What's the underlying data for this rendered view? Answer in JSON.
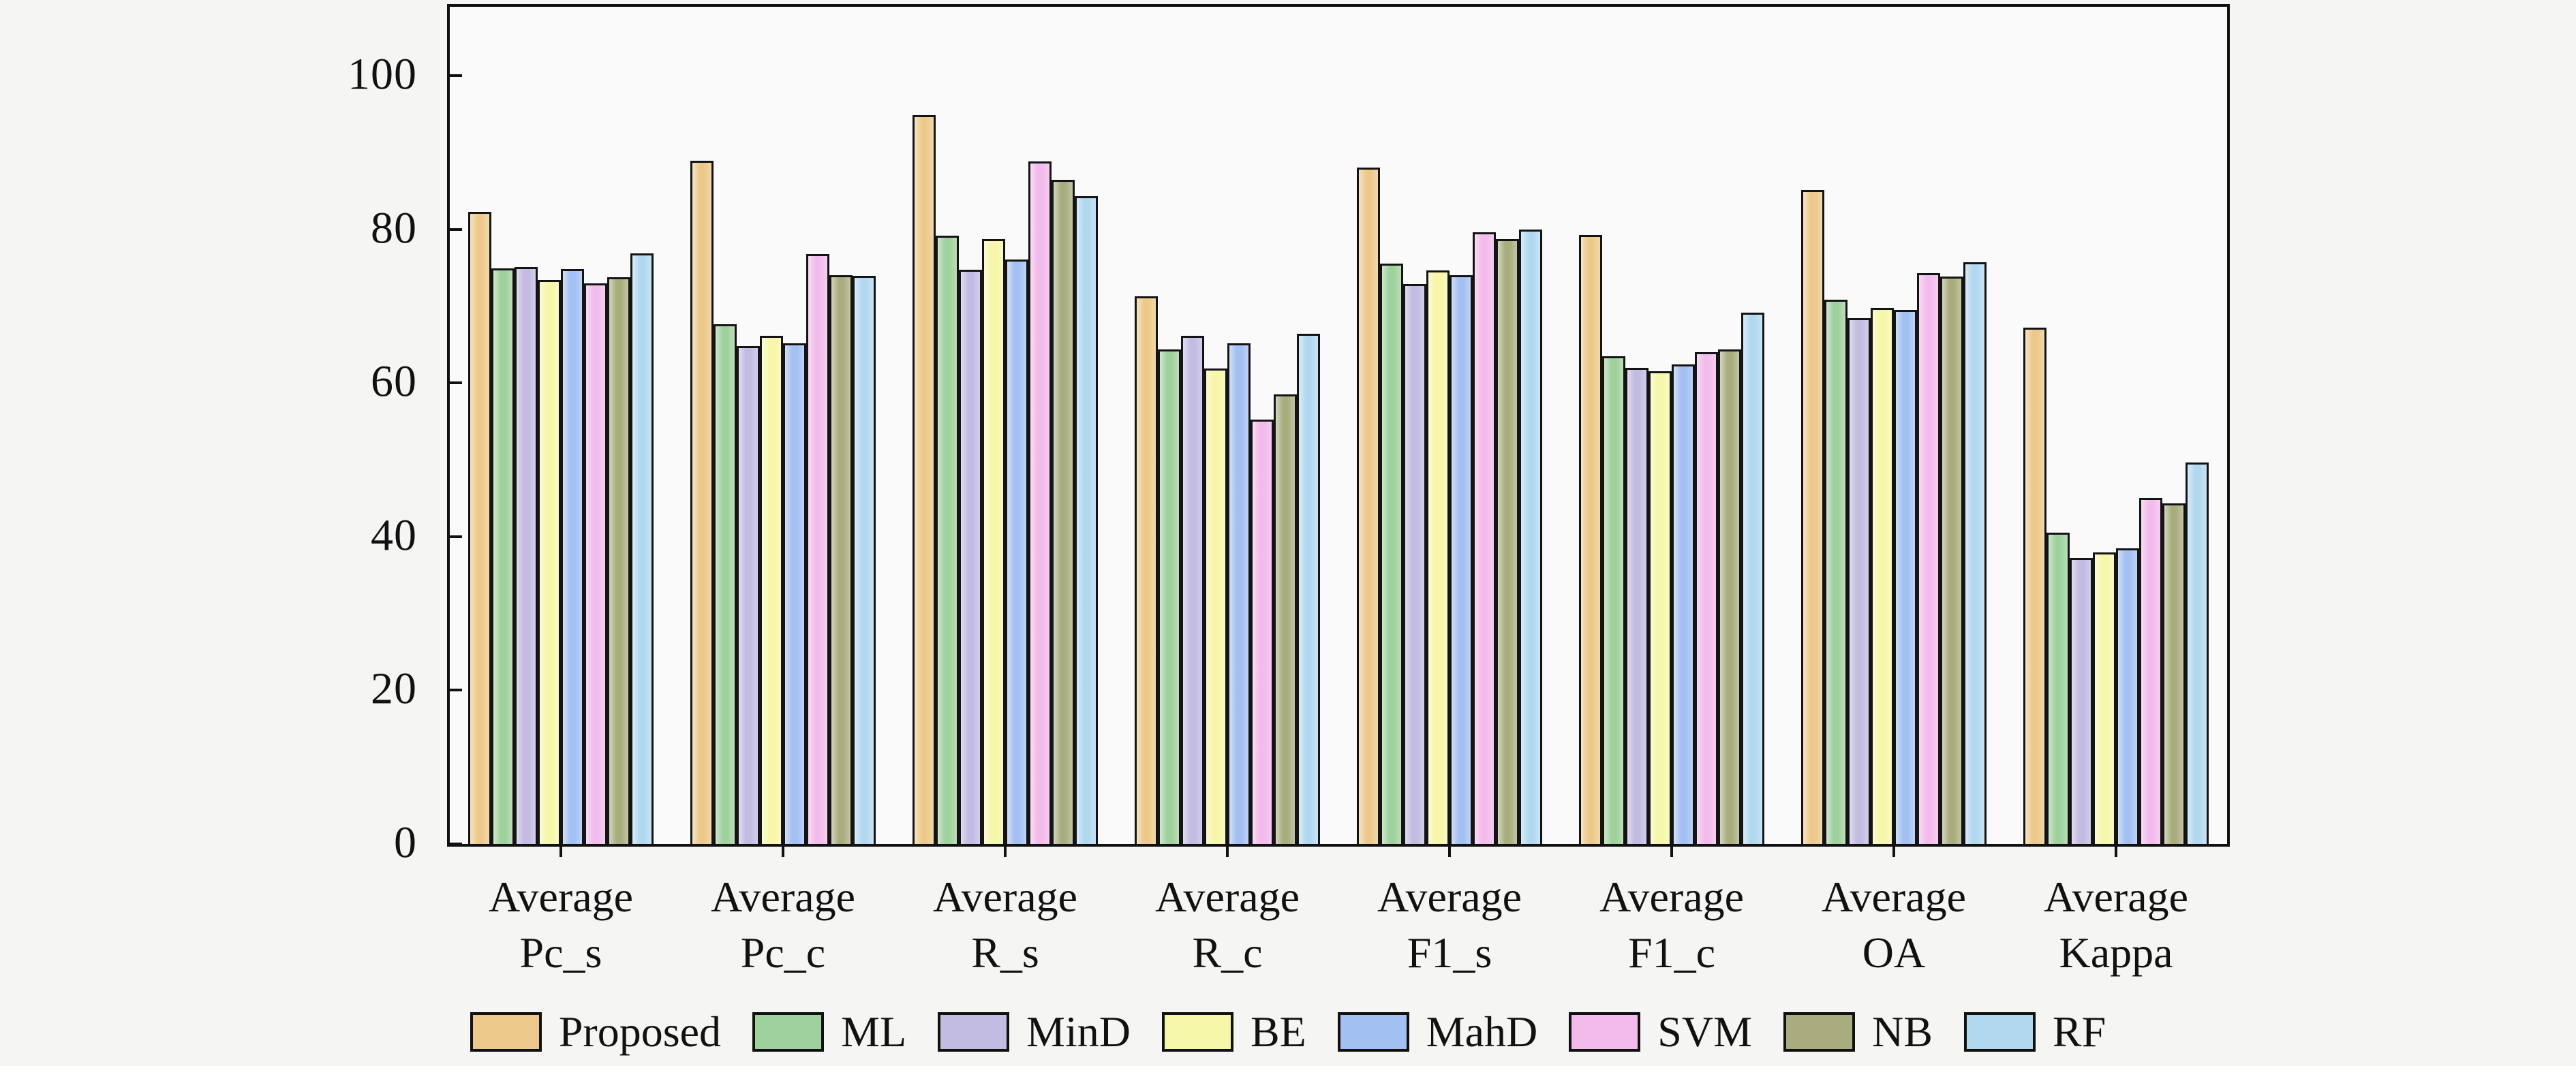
{
  "figure": {
    "background": "#f5f5f4",
    "plot_background": "#fafafa",
    "frame_color": "#111111",
    "bar_outline_color": "#141414"
  },
  "chart_data": {
    "type": "bar",
    "title": "",
    "xlabel": "",
    "ylabel": "",
    "categories": [
      "Average Pc_s",
      "Average Pc_c",
      "Average R_s",
      "Average R_c",
      "Average F1_s",
      "Average F1_c",
      "Average OA",
      "Average Kappa"
    ],
    "series": [
      {
        "name": "Proposed",
        "color": "#ECC98A",
        "values": [
          82.0,
          88.7,
          94.6,
          71.0,
          87.8,
          79.0,
          84.9,
          67.0
        ]
      },
      {
        "name": "ML",
        "color": "#9FD19C",
        "values": [
          74.7,
          67.4,
          78.9,
          64.1,
          75.3,
          63.2,
          70.6,
          40.3
        ]
      },
      {
        "name": "MinD",
        "color": "#C2BBE2",
        "values": [
          74.9,
          64.6,
          74.5,
          65.9,
          72.6,
          61.7,
          68.2,
          37.0
        ]
      },
      {
        "name": "BE",
        "color": "#F6F7A9",
        "values": [
          73.2,
          65.9,
          78.5,
          61.6,
          74.4,
          61.3,
          69.5,
          37.7
        ]
      },
      {
        "name": "MahD",
        "color": "#A3C0F2",
        "values": [
          74.6,
          64.9,
          75.8,
          64.9,
          73.8,
          62.2,
          69.3,
          38.2
        ]
      },
      {
        "name": "SVM",
        "color": "#F2BBEB",
        "values": [
          72.7,
          76.5,
          88.6,
          55.0,
          79.4,
          63.8,
          74.1,
          44.8
        ]
      },
      {
        "name": "NB",
        "color": "#A9AD7E",
        "values": [
          73.5,
          73.8,
          86.2,
          58.3,
          78.5,
          64.1,
          73.6,
          44.1
        ]
      },
      {
        "name": "RF",
        "color": "#B2D8F0",
        "values": [
          76.6,
          73.7,
          84.1,
          66.2,
          79.7,
          68.9,
          75.5,
          49.4
        ]
      }
    ],
    "yticks": [
      0,
      20,
      40,
      60,
      80,
      100
    ],
    "ylim": [
      0,
      109
    ],
    "grid": false,
    "legend_position": "bottom"
  }
}
